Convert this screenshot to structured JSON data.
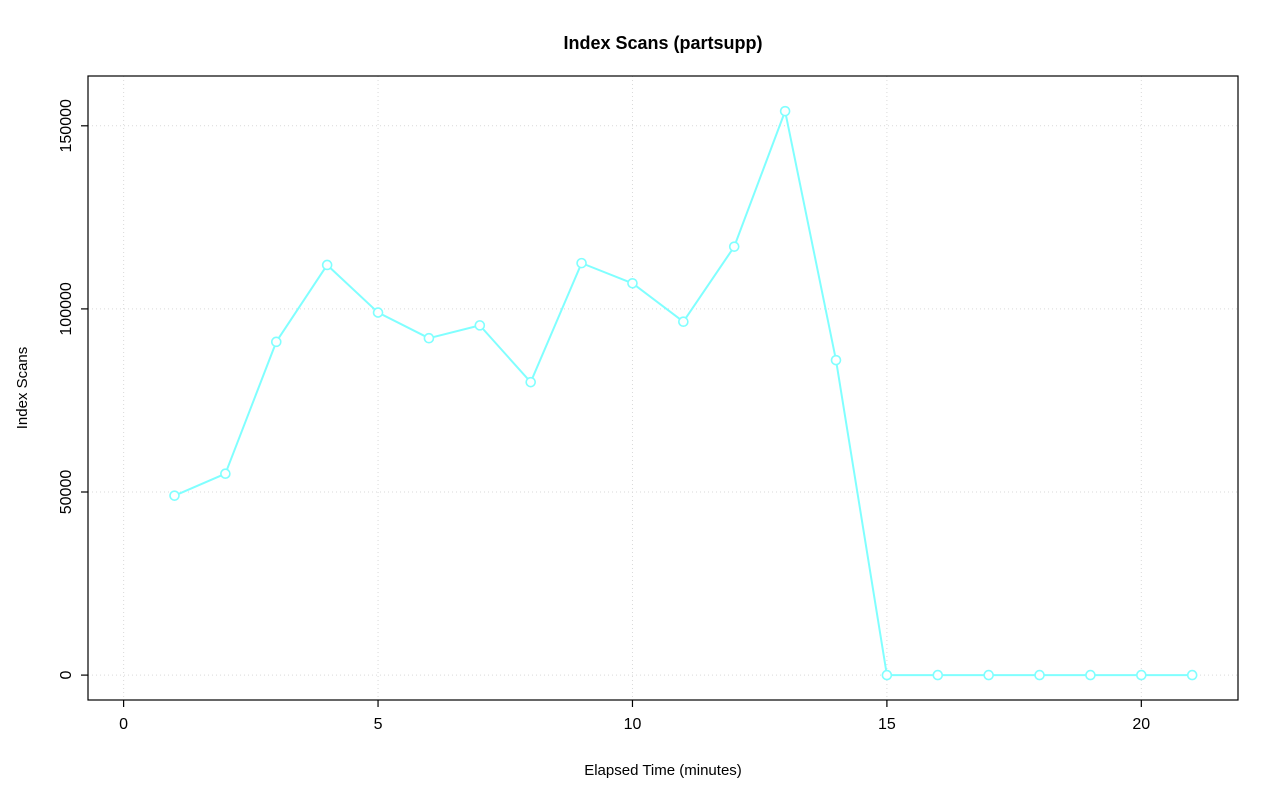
{
  "page": {
    "background": "#ffffff"
  },
  "chart_data": {
    "type": "line",
    "title": "Index Scans (partsupp)",
    "xlabel": "Elapsed Time (minutes)",
    "ylabel": "Index Scans",
    "x": [
      1,
      2,
      3,
      4,
      5,
      6,
      7,
      8,
      9,
      10,
      11,
      12,
      13,
      14,
      15,
      16,
      17,
      18,
      19,
      20,
      21
    ],
    "y": [
      49000,
      55000,
      91000,
      112000,
      99000,
      92000,
      95500,
      80000,
      112500,
      107000,
      96500,
      117000,
      154000,
      86000,
      0,
      0,
      0,
      0,
      0,
      0,
      0
    ],
    "xticks": [
      0,
      5,
      10,
      15,
      20
    ],
    "yticks": [
      0,
      50000,
      100000,
      150000
    ],
    "xlim": [
      -0.7,
      21.9
    ],
    "ylim": [
      -6800,
      163600
    ],
    "grid": true,
    "marker": "open-circle",
    "legend_position": "none",
    "line_color": "#80FFFF",
    "grid_color": "#D9D9D9",
    "axis_color": "#000000",
    "text_color": "#000000"
  }
}
